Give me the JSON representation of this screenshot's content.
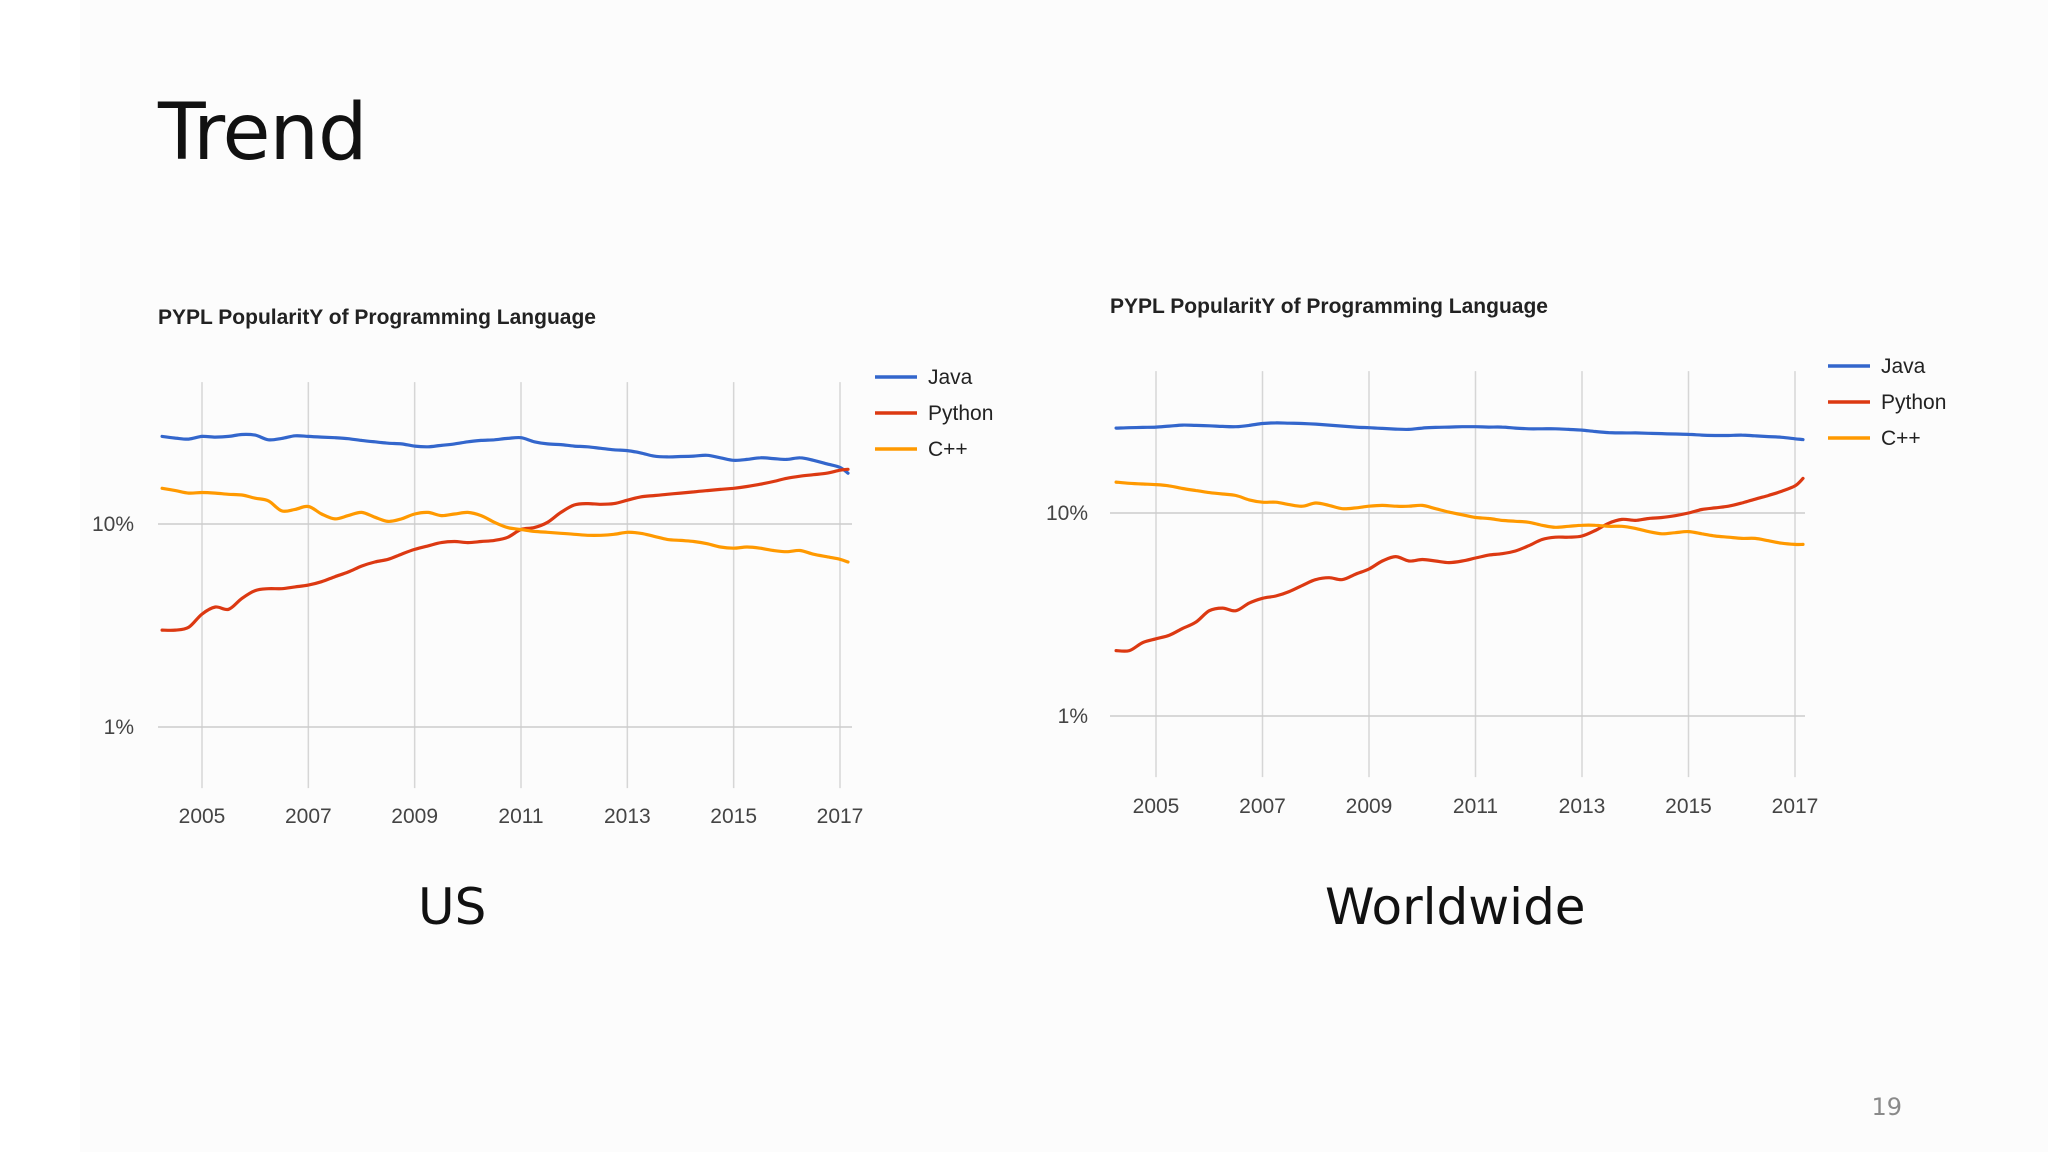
{
  "slide": {
    "title": "Trend",
    "page_number": "19"
  },
  "chart_data": [
    {
      "type": "line",
      "title": "PYPL PopularitY of Programming Language",
      "caption": "US",
      "y_scale": "log",
      "y_ticks": [
        "1%",
        "10%"
      ],
      "x_ticks": [
        "2005",
        "2007",
        "2009",
        "2011",
        "2013",
        "2015",
        "2017"
      ],
      "ylim": [
        0.5,
        50
      ],
      "legend_position": "top-right",
      "grid": true,
      "x": [
        2004.25,
        2004.5,
        2004.75,
        2005,
        2005.25,
        2005.5,
        2005.75,
        2006,
        2006.25,
        2006.5,
        2006.75,
        2007,
        2007.25,
        2007.5,
        2007.75,
        2008,
        2008.25,
        2008.5,
        2008.75,
        2009,
        2009.25,
        2009.5,
        2009.75,
        2010,
        2010.25,
        2010.5,
        2010.75,
        2011,
        2011.25,
        2011.5,
        2011.75,
        2012,
        2012.25,
        2012.5,
        2012.75,
        2013,
        2013.25,
        2013.5,
        2013.75,
        2014,
        2014.25,
        2014.5,
        2014.75,
        2015,
        2015.25,
        2015.5,
        2015.75,
        2016,
        2016.25,
        2016.5,
        2016.75,
        2017,
        2017.15
      ],
      "series": [
        {
          "name": "Java",
          "color": "#3366cc",
          "values": [
            27,
            26.5,
            26.2,
            27,
            26.8,
            27,
            27.6,
            27.4,
            26,
            26.4,
            27.2,
            27,
            26.8,
            26.6,
            26.3,
            25.8,
            25.4,
            25,
            24.8,
            24.2,
            24,
            24.4,
            24.8,
            25.4,
            25.8,
            26,
            26.4,
            26.6,
            25.4,
            24.8,
            24.6,
            24.2,
            24,
            23.6,
            23.2,
            23,
            22.4,
            21.6,
            21.4,
            21.5,
            21.6,
            21.8,
            21.2,
            20.6,
            20.8,
            21.2,
            21,
            20.8,
            21.2,
            20.6,
            19.8,
            19,
            17.8
          ]
        },
        {
          "name": "Python",
          "color": "#dc3912",
          "values": [
            3,
            3,
            3.1,
            3.6,
            3.9,
            3.8,
            4.3,
            4.7,
            4.8,
            4.8,
            4.9,
            5,
            5.2,
            5.5,
            5.8,
            6.2,
            6.5,
            6.7,
            7.1,
            7.5,
            7.8,
            8.1,
            8.2,
            8.1,
            8.2,
            8.3,
            8.6,
            9.4,
            9.6,
            10.2,
            11.4,
            12.4,
            12.6,
            12.5,
            12.6,
            13.1,
            13.6,
            13.8,
            14,
            14.2,
            14.4,
            14.6,
            14.8,
            15,
            15.3,
            15.7,
            16.2,
            16.8,
            17.2,
            17.5,
            17.8,
            18.4,
            18.6
          ]
        },
        {
          "name": "C++",
          "color": "#ff9900",
          "values": [
            15,
            14.6,
            14.2,
            14.3,
            14.2,
            14,
            13.9,
            13.4,
            13,
            11.6,
            11.8,
            12.2,
            11.2,
            10.6,
            11,
            11.4,
            10.8,
            10.3,
            10.6,
            11.2,
            11.4,
            11,
            11.2,
            11.4,
            11,
            10.2,
            9.6,
            9.4,
            9.2,
            9.1,
            9,
            8.9,
            8.8,
            8.8,
            8.9,
            9.1,
            9,
            8.7,
            8.4,
            8.3,
            8.2,
            8,
            7.7,
            7.6,
            7.7,
            7.6,
            7.4,
            7.3,
            7.4,
            7.1,
            6.9,
            6.7,
            6.5
          ]
        }
      ]
    },
    {
      "type": "line",
      "title": "PYPL PopularitY of Programming Language",
      "caption": "Worldwide",
      "y_scale": "log",
      "y_ticks": [
        "1%",
        "10%"
      ],
      "x_ticks": [
        "2005",
        "2007",
        "2009",
        "2011",
        "2013",
        "2015",
        "2017"
      ],
      "ylim": [
        0.5,
        50
      ],
      "legend_position": "top-right",
      "grid": true,
      "x": [
        2004.25,
        2004.5,
        2004.75,
        2005,
        2005.25,
        2005.5,
        2005.75,
        2006,
        2006.25,
        2006.5,
        2006.75,
        2007,
        2007.25,
        2007.5,
        2007.75,
        2008,
        2008.25,
        2008.5,
        2008.75,
        2009,
        2009.25,
        2009.5,
        2009.75,
        2010,
        2010.25,
        2010.5,
        2010.75,
        2011,
        2011.25,
        2011.5,
        2011.75,
        2012,
        2012.25,
        2012.5,
        2012.75,
        2013,
        2013.25,
        2013.5,
        2013.75,
        2014,
        2014.25,
        2014.5,
        2014.75,
        2015,
        2015.25,
        2015.5,
        2015.75,
        2016,
        2016.25,
        2016.5,
        2016.75,
        2017,
        2017.15
      ],
      "series": [
        {
          "name": "Java",
          "color": "#3366cc",
          "values": [
            26.2,
            26.3,
            26.4,
            26.5,
            26.8,
            27.1,
            27,
            26.9,
            26.7,
            26.6,
            27,
            27.6,
            27.8,
            27.7,
            27.6,
            27.4,
            27.1,
            26.8,
            26.5,
            26.3,
            26.1,
            25.9,
            25.8,
            26.2,
            26.4,
            26.5,
            26.6,
            26.6,
            26.5,
            26.5,
            26.2,
            26,
            26,
            26,
            25.8,
            25.6,
            25.2,
            24.9,
            24.8,
            24.8,
            24.7,
            24.6,
            24.5,
            24.4,
            24.2,
            24.1,
            24.1,
            24.2,
            24,
            23.8,
            23.6,
            23.2,
            23
          ]
        },
        {
          "name": "Python",
          "color": "#dc3912",
          "values": [
            2.1,
            2.1,
            2.3,
            2.4,
            2.5,
            2.7,
            2.9,
            3.3,
            3.4,
            3.3,
            3.6,
            3.8,
            3.9,
            4.1,
            4.4,
            4.7,
            4.8,
            4.7,
            5,
            5.3,
            5.8,
            6.1,
            5.8,
            5.9,
            5.8,
            5.7,
            5.8,
            6,
            6.2,
            6.3,
            6.5,
            6.9,
            7.4,
            7.6,
            7.6,
            7.7,
            8.2,
            8.9,
            9.3,
            9.2,
            9.4,
            9.5,
            9.7,
            10,
            10.4,
            10.6,
            10.8,
            11.2,
            11.7,
            12.2,
            12.8,
            13.6,
            14.8
          ]
        },
        {
          "name": "C++",
          "color": "#ff9900",
          "values": [
            14.2,
            14,
            13.9,
            13.8,
            13.6,
            13.2,
            12.9,
            12.6,
            12.4,
            12.2,
            11.6,
            11.3,
            11.3,
            11,
            10.8,
            11.2,
            10.9,
            10.5,
            10.6,
            10.8,
            10.9,
            10.8,
            10.8,
            10.9,
            10.5,
            10.1,
            9.8,
            9.5,
            9.4,
            9.2,
            9.1,
            9,
            8.7,
            8.5,
            8.6,
            8.7,
            8.7,
            8.6,
            8.6,
            8.4,
            8.1,
            7.9,
            8,
            8.1,
            7.9,
            7.7,
            7.6,
            7.5,
            7.5,
            7.3,
            7.1,
            7,
            7
          ]
        }
      ]
    }
  ]
}
